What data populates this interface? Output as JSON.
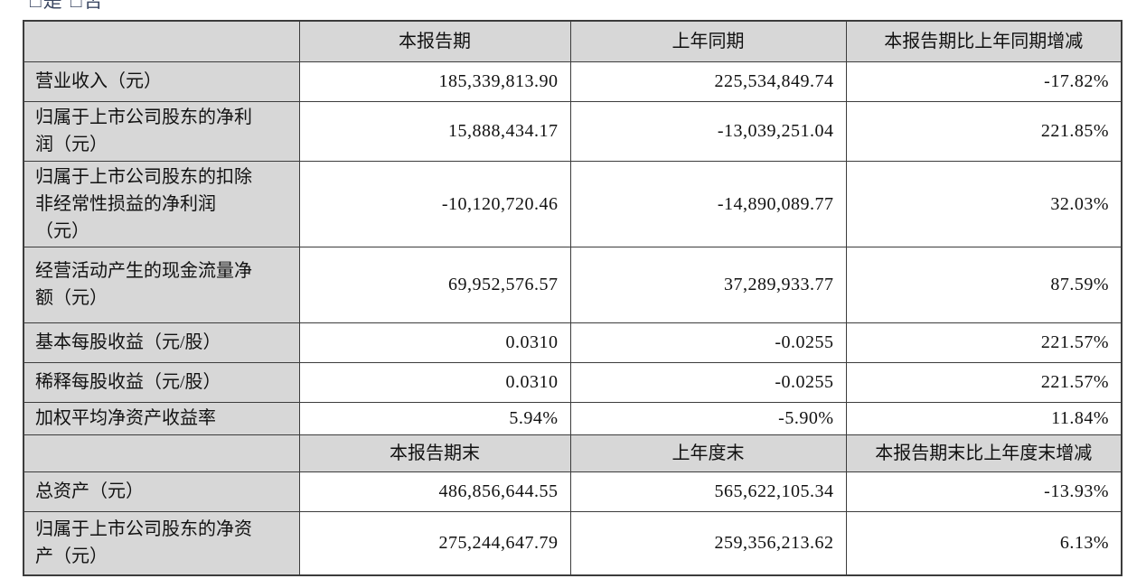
{
  "page_top": {
    "clipped_text": "□是 □否"
  },
  "colors": {
    "header_bg": "#d7d7d7",
    "border": "#3c3c3c",
    "text": "#111111"
  },
  "table": {
    "sections": [
      {
        "header": {
          "col1": "本报告期",
          "col2": "上年同期",
          "col3": "本报告期比上年同期增减"
        },
        "rows": [
          {
            "label": "营业收入（元）",
            "current": "185,339,813.90",
            "previous": "225,534,849.74",
            "change": "-17.82%"
          },
          {
            "label": "归属于上市公司股东的净利润（元）",
            "current": "15,888,434.17",
            "previous": "-13,039,251.04",
            "change": "221.85%"
          },
          {
            "label": "归属于上市公司股东的扣除非经常性损益的净利润（元）",
            "current": "-10,120,720.46",
            "previous": "-14,890,089.77",
            "change": "32.03%"
          },
          {
            "label": "经营活动产生的现金流量净额（元）",
            "current": "69,952,576.57",
            "previous": "37,289,933.77",
            "change": "87.59%"
          },
          {
            "label": "基本每股收益（元/股）",
            "current": "0.0310",
            "previous": "-0.0255",
            "change": "221.57%"
          },
          {
            "label": "稀释每股收益（元/股）",
            "current": "0.0310",
            "previous": "-0.0255",
            "change": "221.57%"
          },
          {
            "label": "加权平均净资产收益率",
            "current": "5.94%",
            "previous": "-5.90%",
            "change": "11.84%"
          }
        ]
      },
      {
        "header": {
          "col1": "本报告期末",
          "col2": "上年度末",
          "col3": "本报告期末比上年度末增减"
        },
        "rows": [
          {
            "label": "总资产（元）",
            "current": "486,856,644.55",
            "previous": "565,622,105.34",
            "change": "-13.93%"
          },
          {
            "label": "归属于上市公司股东的净资产（元）",
            "current": "275,244,647.79",
            "previous": "259,356,213.62",
            "change": "6.13%"
          }
        ]
      }
    ]
  }
}
